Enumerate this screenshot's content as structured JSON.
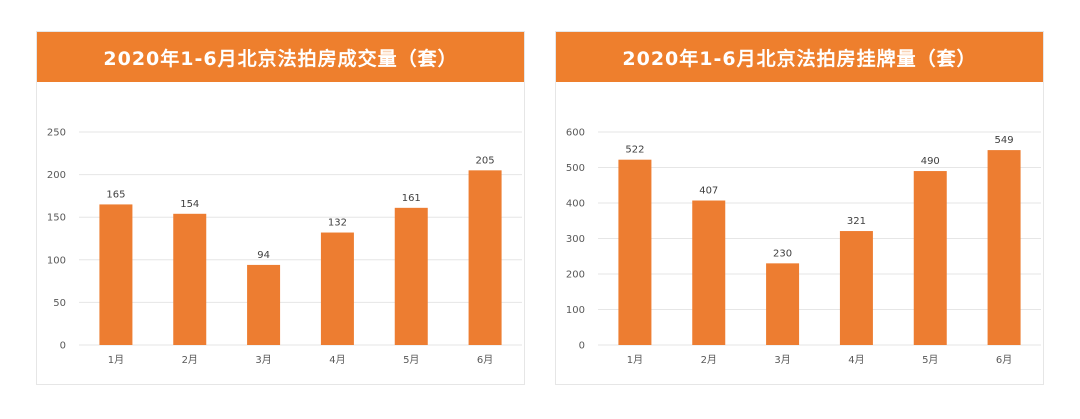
{
  "colors": {
    "header": "#ee7f2d",
    "bar": "#ed7d31",
    "grid": "#e6e6e6"
  },
  "chart_data": [
    {
      "type": "bar",
      "title": "2020年1-6月北京法拍房成交量（套）",
      "categories": [
        "1月",
        "2月",
        "3月",
        "4月",
        "5月",
        "6月"
      ],
      "values": [
        165,
        154,
        94,
        132,
        161,
        205
      ],
      "ylim": [
        0,
        250
      ],
      "yticks": [
        0,
        50,
        100,
        150,
        200,
        250
      ],
      "grid": true
    },
    {
      "type": "bar",
      "title": "2020年1-6月北京法拍房挂牌量（套）",
      "categories": [
        "1月",
        "2月",
        "3月",
        "4月",
        "5月",
        "6月"
      ],
      "values": [
        522,
        407,
        230,
        321,
        490,
        549
      ],
      "ylim": [
        0,
        600
      ],
      "yticks": [
        0,
        100,
        200,
        300,
        400,
        500,
        600
      ],
      "grid": true
    }
  ]
}
